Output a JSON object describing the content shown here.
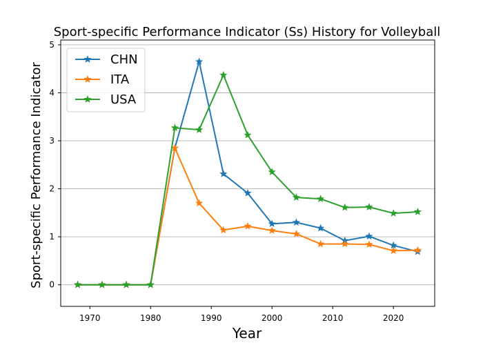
{
  "chart_data": {
    "type": "line",
    "title": "Sport-specific Performance Indicator (Ss) History for Volleyball",
    "xlabel": "Year",
    "ylabel": "Sport-specific Performance Indicator",
    "x_ticks": [
      1970,
      1980,
      1990,
      2000,
      2010,
      2020
    ],
    "y_ticks": [
      0,
      1,
      2,
      3,
      4,
      5
    ],
    "xlim": [
      1965.2,
      2026.8
    ],
    "ylim": [
      -0.45,
      5.1
    ],
    "grid": "y-axis horizontal",
    "legend": "top-left",
    "series": [
      {
        "name": "CHN",
        "color": "#1f77b4",
        "marker": "star",
        "points": [
          [
            1968,
            0
          ],
          [
            1972,
            0
          ],
          [
            1976,
            0
          ],
          [
            1980,
            0
          ],
          [
            1984,
            2.85
          ],
          [
            1988,
            4.65
          ],
          [
            1992,
            2.31
          ],
          [
            1996,
            1.91
          ],
          [
            2000,
            1.27
          ],
          [
            2004,
            1.3
          ],
          [
            2008,
            1.18
          ],
          [
            2012,
            0.92
          ],
          [
            2016,
            1.01
          ],
          [
            2020,
            0.82
          ],
          [
            2024,
            0.69
          ]
        ]
      },
      {
        "name": "ITA",
        "color": "#ff7f0e",
        "marker": "star",
        "points": [
          [
            1968,
            0
          ],
          [
            1972,
            0
          ],
          [
            1976,
            0
          ],
          [
            1980,
            0
          ],
          [
            1984,
            2.85
          ],
          [
            1988,
            1.7
          ],
          [
            1992,
            1.14
          ],
          [
            1996,
            1.22
          ],
          [
            2000,
            1.13
          ],
          [
            2004,
            1.06
          ],
          [
            2008,
            0.85
          ],
          [
            2012,
            0.85
          ],
          [
            2016,
            0.84
          ],
          [
            2020,
            0.71
          ],
          [
            2024,
            0.72
          ]
        ]
      },
      {
        "name": "USA",
        "color": "#2ca02c",
        "marker": "star",
        "points": [
          [
            1968,
            0
          ],
          [
            1972,
            0
          ],
          [
            1976,
            0
          ],
          [
            1980,
            0
          ],
          [
            1984,
            3.27
          ],
          [
            1988,
            3.23
          ],
          [
            1992,
            4.37
          ],
          [
            1996,
            3.12
          ],
          [
            2000,
            2.35
          ],
          [
            2004,
            1.82
          ],
          [
            2008,
            1.79
          ],
          [
            2012,
            1.61
          ],
          [
            2016,
            1.62
          ],
          [
            2020,
            1.49
          ],
          [
            2024,
            1.52
          ]
        ]
      }
    ]
  }
}
